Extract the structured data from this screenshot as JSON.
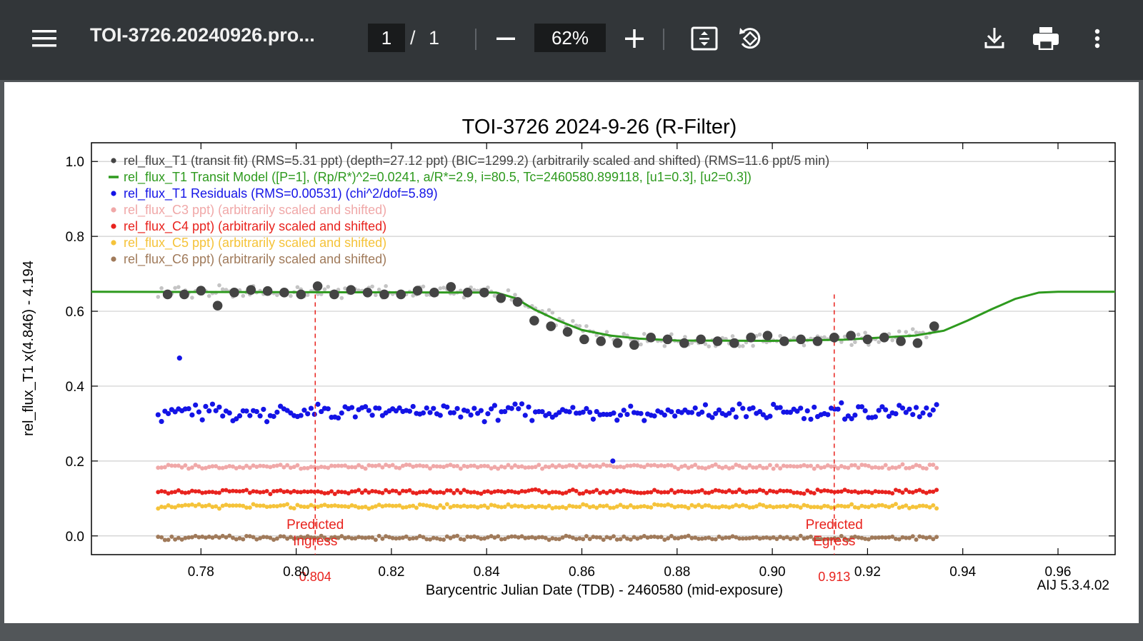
{
  "toolbar": {
    "menu_icon": "menu-icon",
    "title": "TOI-3726.20240926.pro...",
    "current_page": "1",
    "page_separator": "/",
    "total_pages": "1",
    "zoom": "62%",
    "zoom_out_icon": "minus-icon",
    "zoom_in_icon": "plus-icon",
    "fit_icon": "fit-page-icon",
    "rotate_icon": "rotate-icon",
    "download_icon": "download-icon",
    "print_icon": "print-icon",
    "more_icon": "more-vert-icon"
  },
  "chart_data": {
    "type": "scatter",
    "title": "TOI-3726 2024-9-26 (R-Filter)",
    "xlabel": "Barycentric Julian Date (TDB) - 2460580 (mid-exposure)",
    "ylabel": "rel_flux_T1 x(4.846) - 4.194",
    "xlim": [
      0.757,
      0.972
    ],
    "ylim": [
      -0.05,
      1.05
    ],
    "xticks": [
      "0.78",
      "0.80",
      "0.82",
      "0.84",
      "0.86",
      "0.88",
      "0.90",
      "0.92",
      "0.94",
      "0.96"
    ],
    "xtick_values": [
      0.78,
      0.8,
      0.82,
      0.84,
      0.86,
      0.88,
      0.9,
      0.92,
      0.94,
      0.96
    ],
    "yticks": [
      "0.0",
      "0.2",
      "0.4",
      "0.6",
      "0.8",
      "1.0"
    ],
    "ytick_values": [
      0.0,
      0.2,
      0.4,
      0.6,
      0.8,
      1.0
    ],
    "grid": true,
    "legend_placement": "top-left",
    "version_label": "AIJ 5.3.4.02",
    "legend": [
      {
        "label": "rel_flux_T1 (transit fit) (RMS=5.31 ppt) (depth=27.12 ppt) (BIC=1299.2) (arbitrarily scaled and shifted) (RMS=11.6 ppt/5 min)",
        "color": "#444444",
        "marker": "dot"
      },
      {
        "label": "rel_flux_T1 Transit Model ([P=1], (Rp/R*)^2=0.0241, a/R*=2.9, i=80.5, Tc=2460580.899118, [u1=0.3], [u2=0.3])",
        "color": "#2e9a1e",
        "marker": "line"
      },
      {
        "label": "rel_flux_T1 Residuals (RMS=0.00531) (chi^2/dof=5.89)",
        "color": "#1414e6",
        "marker": "dot"
      },
      {
        "label": "rel_flux_C3 ppt) (arbitrarily scaled and shifted)",
        "color": "#f0a8a8",
        "marker": "dot"
      },
      {
        "label": "rel_flux_C4 ppt) (arbitrarily scaled and shifted)",
        "color": "#e8231e",
        "marker": "dot"
      },
      {
        "label": "rel_flux_C5 ppt) (arbitrarily scaled and shifted)",
        "color": "#f5c33a",
        "marker": "dot"
      },
      {
        "label": "rel_flux_C6 ppt) (arbitrarily scaled and shifted)",
        "color": "#a07a5a",
        "marker": "dot"
      }
    ],
    "markers": [
      {
        "x": 0.804,
        "label_top": "Predicted",
        "label_bottom": "Ingress",
        "value_label": "0.804",
        "color": "#e8231e"
      },
      {
        "x": 0.913,
        "label_top": "Predicted",
        "label_bottom": "Egress",
        "value_label": "0.913",
        "color": "#e8231e"
      }
    ],
    "model": {
      "name": "rel_flux_T1 Transit Model",
      "x": [
        0.757,
        0.842,
        0.846,
        0.85,
        0.855,
        0.86,
        0.866,
        0.872,
        0.88,
        0.9,
        0.915,
        0.93,
        0.936,
        0.941,
        0.946,
        0.951,
        0.956,
        0.96,
        0.972
      ],
      "y": [
        0.652,
        0.65,
        0.635,
        0.605,
        0.575,
        0.55,
        0.535,
        0.527,
        0.522,
        0.521,
        0.524,
        0.535,
        0.548,
        0.575,
        0.605,
        0.633,
        0.65,
        0.652,
        0.652
      ],
      "color": "#2e9a1e"
    },
    "binned": {
      "name": "rel_flux_T1 binned",
      "x": [
        0.773,
        0.7765,
        0.78,
        0.7835,
        0.787,
        0.7905,
        0.794,
        0.7975,
        0.801,
        0.8045,
        0.808,
        0.8115,
        0.815,
        0.8185,
        0.822,
        0.8255,
        0.829,
        0.8325,
        0.836,
        0.8395,
        0.843,
        0.8465,
        0.85,
        0.8535,
        0.857,
        0.8605,
        0.864,
        0.8675,
        0.871,
        0.8745,
        0.878,
        0.8815,
        0.885,
        0.8885,
        0.892,
        0.8955,
        0.899,
        0.9025,
        0.906,
        0.9095,
        0.913,
        0.9165,
        0.92,
        0.9235,
        0.927,
        0.9305,
        0.934
      ],
      "y": [
        0.645,
        0.645,
        0.655,
        0.615,
        0.65,
        0.657,
        0.654,
        0.65,
        0.645,
        0.667,
        0.645,
        0.657,
        0.65,
        0.645,
        0.645,
        0.655,
        0.65,
        0.665,
        0.65,
        0.65,
        0.635,
        0.625,
        0.575,
        0.56,
        0.545,
        0.525,
        0.52,
        0.515,
        0.51,
        0.53,
        0.525,
        0.515,
        0.525,
        0.52,
        0.515,
        0.53,
        0.535,
        0.52,
        0.525,
        0.52,
        0.53,
        0.535,
        0.525,
        0.53,
        0.52,
        0.515,
        0.56
      ],
      "color": "#444444"
    },
    "residual_outliers": {
      "x": [
        0.7755,
        0.8665
      ],
      "y": [
        0.475,
        0.2
      ]
    },
    "series_config": [
      {
        "key": "raw",
        "color": "#c4c4c4",
        "radius": 2.8,
        "base": "model",
        "offset": 0.0,
        "amp": 0.012
      },
      {
        "key": "residuals",
        "color": "#1414e6",
        "radius": 3.6,
        "base": "const",
        "offset": 0.33,
        "amp": 0.017
      },
      {
        "key": "c3",
        "color": "#f0a8a8",
        "radius": 3.0,
        "base": "const",
        "offset": 0.185,
        "amp": 0.004
      },
      {
        "key": "c4",
        "color": "#e8231e",
        "radius": 3.0,
        "base": "const",
        "offset": 0.118,
        "amp": 0.004
      },
      {
        "key": "c5",
        "color": "#f5c33a",
        "radius": 3.0,
        "base": "const",
        "offset": 0.079,
        "amp": 0.004
      },
      {
        "key": "c6",
        "color": "#a07a5a",
        "radius": 3.0,
        "base": "const",
        "offset": -0.005,
        "amp": 0.004
      }
    ],
    "x_range_data": [
      0.771,
      0.9345
    ]
  }
}
